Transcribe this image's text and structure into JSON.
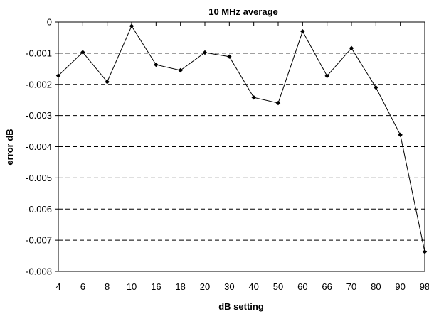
{
  "chart_data": {
    "type": "line",
    "title": "10 MHz average",
    "xlabel": "dB setting",
    "ylabel": "error dB",
    "categories": [
      "4",
      "6",
      "8",
      "10",
      "16",
      "18",
      "20",
      "30",
      "40",
      "50",
      "60",
      "66",
      "70",
      "80",
      "90",
      "98"
    ],
    "series": [
      {
        "values": [
          -0.00172,
          -0.00097,
          -0.00192,
          -0.00013,
          -0.00137,
          -0.00155,
          -0.00098,
          -0.00111,
          -0.00242,
          -0.0026,
          -0.0003,
          -0.00173,
          -0.00084,
          -0.0021,
          -0.00362,
          -0.00737
        ]
      }
    ],
    "ylim": [
      -0.008,
      0
    ],
    "yticks": [
      0,
      -0.001,
      -0.002,
      -0.003,
      -0.004,
      -0.005,
      -0.006,
      -0.007,
      -0.008
    ],
    "ytick_labels": [
      "0",
      "-0.001",
      "-0.002",
      "-0.003",
      "-0.004",
      "-0.005",
      "-0.006",
      "-0.007",
      "-0.008"
    ],
    "grid": "horizontal dashed",
    "legend": "none",
    "colors": {
      "line": "#000000",
      "marker": "#000000",
      "grid": "#000000"
    }
  }
}
